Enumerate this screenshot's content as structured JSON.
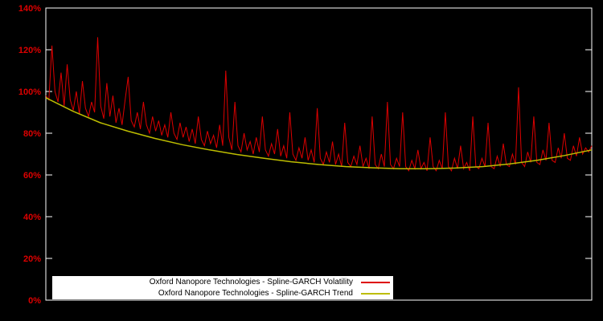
{
  "chart": {
    "background": "#000000",
    "frame_color": "#ffffff",
    "axis_label_color": "#dd0000",
    "y_ticks": [
      {
        "value": 0,
        "label": "0%"
      },
      {
        "value": 20,
        "label": "20%"
      },
      {
        "value": 40,
        "label": "40%"
      },
      {
        "value": 60,
        "label": "60%"
      },
      {
        "value": 80,
        "label": "80%"
      },
      {
        "value": 100,
        "label": "100%"
      },
      {
        "value": 120,
        "label": "120%"
      },
      {
        "value": 140,
        "label": "140%"
      }
    ]
  },
  "chart_data": {
    "type": "line",
    "title": "",
    "xlabel": "",
    "ylabel": "",
    "x_tick_labels": [],
    "ylim": [
      0,
      140
    ],
    "y_unit": "percent",
    "grid": false,
    "legend_position": "bottom-center-inside",
    "series": [
      {
        "name": "Oxford Nanopore Technologies - Spline-GARCH Volatility",
        "color": "#dd0000",
        "style": "noisy-line",
        "values": [
          98,
          96,
          122,
          100,
          95,
          109,
          93,
          113,
          96,
          91,
          100,
          89,
          105,
          92,
          88,
          95,
          90,
          126,
          93,
          87,
          104,
          88,
          98,
          85,
          92,
          84,
          96,
          107,
          86,
          83,
          90,
          82,
          95,
          84,
          80,
          88,
          81,
          86,
          79,
          84,
          78,
          90,
          80,
          77,
          85,
          78,
          83,
          76,
          82,
          75,
          88,
          77,
          74,
          81,
          75,
          79,
          73,
          84,
          74,
          110,
          78,
          72,
          95,
          74,
          71,
          80,
          72,
          76,
          70,
          78,
          71,
          88,
          72,
          69,
          75,
          70,
          82,
          69,
          74,
          68,
          90,
          70,
          67,
          73,
          68,
          78,
          67,
          72,
          66,
          92,
          68,
          65,
          71,
          66,
          76,
          65,
          70,
          64,
          85,
          66,
          64,
          69,
          65,
          74,
          64,
          68,
          63,
          88,
          65,
          63,
          70,
          64,
          95,
          65,
          63,
          68,
          64,
          90,
          64,
          62,
          67,
          63,
          72,
          63,
          66,
          62,
          78,
          64,
          62,
          67,
          63,
          90,
          64,
          62,
          68,
          63,
          74,
          63,
          66,
          62,
          88,
          64,
          63,
          68,
          64,
          85,
          64,
          63,
          69,
          64,
          75,
          65,
          64,
          70,
          65,
          102,
          66,
          64,
          71,
          66,
          88,
          66,
          65,
          72,
          67,
          85,
          67,
          66,
          73,
          68,
          80,
          68,
          67,
          74,
          69,
          78,
          70,
          73,
          71,
          74
        ]
      },
      {
        "name": "Oxford Nanopore Technologies - Spline-GARCH Trend",
        "color": "#bdbd00",
        "style": "smooth-line",
        "x": [
          0,
          0.05,
          0.1,
          0.15,
          0.2,
          0.25,
          0.3,
          0.35,
          0.4,
          0.45,
          0.5,
          0.55,
          0.6,
          0.65,
          0.7,
          0.75,
          0.8,
          0.85,
          0.9,
          0.95,
          1.0
        ],
        "values": [
          97,
          90.5,
          85,
          81,
          77.5,
          74.5,
          72,
          69.8,
          68,
          66.3,
          65,
          64,
          63.4,
          63,
          63,
          63.3,
          64,
          65.3,
          67,
          69.3,
          72
        ]
      }
    ]
  }
}
